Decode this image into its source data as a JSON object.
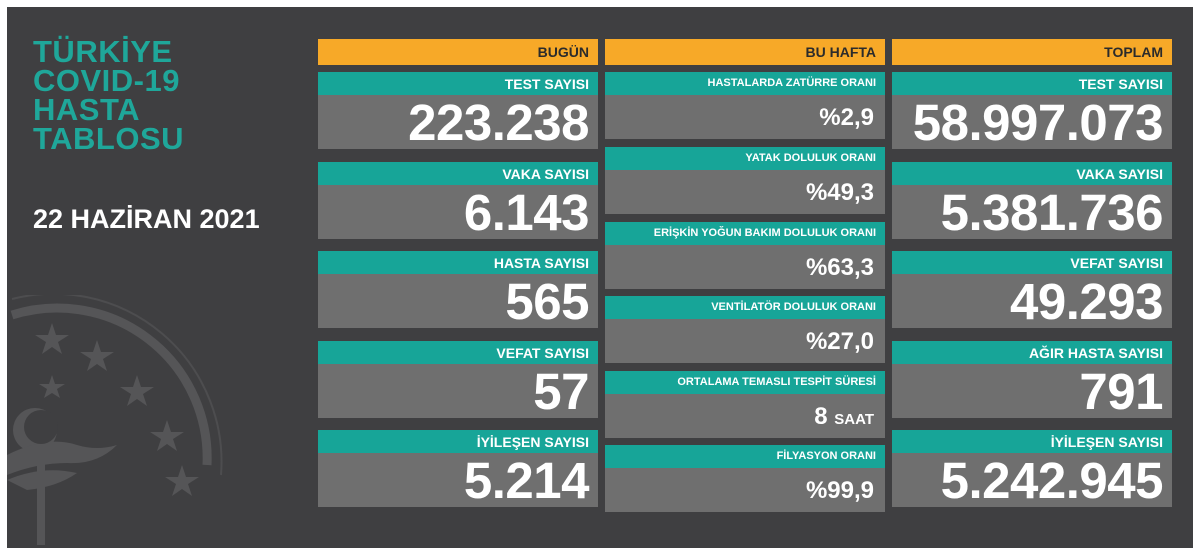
{
  "title_lines": [
    "TÜRKİYE",
    "COVID-19",
    "HASTA",
    "TABLOSU"
  ],
  "date": "22 HAZİRAN 2021",
  "today": {
    "header": "BUGÜN",
    "items": [
      {
        "label": "TEST SAYISI",
        "value": "223.238"
      },
      {
        "label": "VAKA SAYISI",
        "value": "6.143"
      },
      {
        "label": "HASTA SAYISI",
        "value": "565"
      },
      {
        "label": "VEFAT SAYISI",
        "value": "57"
      },
      {
        "label": "İYİLEŞEN SAYISI",
        "value": "5.214"
      }
    ]
  },
  "week": {
    "header": "BU HAFTA",
    "items": [
      {
        "label": "HASTALARDA ZATÜRRE ORANI",
        "value": "%2,9"
      },
      {
        "label": "YATAK DOLULUK ORANI",
        "value": "%49,3"
      },
      {
        "label": "ERİŞKİN YOĞUN BAKIM DOLULUK ORANI",
        "value": "%63,3"
      },
      {
        "label": "VENTİLATÖR DOLULUK ORANI",
        "value": "%27,0"
      },
      {
        "label": "ORTALAMA TEMASLI TESPİT SÜRESİ",
        "value": "8",
        "unit": "SAAT"
      },
      {
        "label": "FİLYASYON ORANI",
        "value": "%99,9"
      }
    ]
  },
  "total": {
    "header": "TOPLAM",
    "items": [
      {
        "label": "TEST SAYISI",
        "value": "58.997.073"
      },
      {
        "label": "VAKA SAYISI",
        "value": "5.381.736"
      },
      {
        "label": "VEFAT SAYISI",
        "value": "49.293"
      },
      {
        "label": "AĞIR HASTA SAYISI",
        "value": "791"
      },
      {
        "label": "İYİLEŞEN SAYISI",
        "value": "5.242.945"
      }
    ]
  },
  "colors": {
    "background": "#3f3f41",
    "accent_orange": "#f7a928",
    "accent_teal": "#17a598",
    "value_gray": "#6f6f6f",
    "title_teal": "#1fa79a"
  }
}
